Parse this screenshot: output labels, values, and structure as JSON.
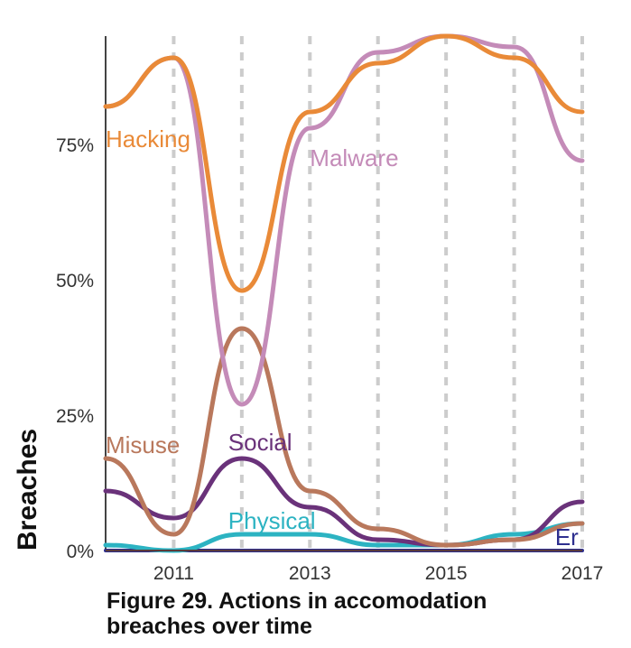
{
  "chart_data": {
    "type": "line",
    "title": "",
    "xlabel": "",
    "ylabel": "Breaches",
    "x": [
      2010,
      2011,
      2012,
      2013,
      2014,
      2015,
      2016,
      2017
    ],
    "x_ticks": [
      "2011",
      "2013",
      "2015",
      "2017"
    ],
    "x_tick_values": [
      2011,
      2013,
      2015,
      2017
    ],
    "y_ticks": [
      "0%",
      "25%",
      "50%",
      "75%"
    ],
    "y_tick_values": [
      0,
      25,
      50,
      75
    ],
    "xlim": [
      2010,
      2017
    ],
    "ylim": [
      0,
      95
    ],
    "grid": {
      "vertical_dashed": true,
      "horizontal": false
    },
    "series": [
      {
        "name": "Malware",
        "color": "#c48bb8",
        "values": [
          82,
          91,
          27,
          78,
          92,
          95,
          93,
          72
        ]
      },
      {
        "name": "Hacking",
        "color": "#e98a38",
        "values": [
          82,
          91,
          48,
          81,
          90,
          95,
          91,
          81
        ]
      },
      {
        "name": "Misuse",
        "color": "#b9785c",
        "values": [
          17,
          3,
          41,
          11,
          4,
          1,
          2,
          5
        ]
      },
      {
        "name": "Social",
        "color": "#6a327a",
        "values": [
          11,
          6,
          17,
          8,
          2,
          1,
          2,
          9
        ]
      },
      {
        "name": "Physical",
        "color": "#2cb3c2",
        "values": [
          1,
          0,
          3,
          3,
          1,
          1,
          3,
          5
        ]
      },
      {
        "name": "Er",
        "color": "#2e2f8f",
        "values": [
          0,
          0,
          0,
          0,
          0,
          0,
          0,
          0
        ]
      }
    ]
  },
  "caption": {
    "line1": "Figure 29.  Actions in accomodation",
    "line2": "breaches over time"
  }
}
